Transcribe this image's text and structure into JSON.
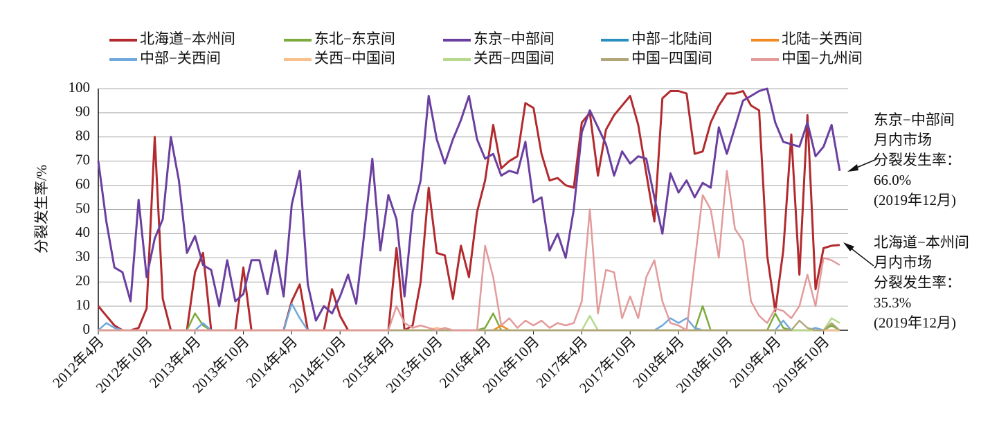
{
  "chart_data": {
    "type": "line",
    "y_label": "分裂发生率/%",
    "categories": [
      "2012年4月",
      null,
      null,
      null,
      null,
      null,
      "2012年10月",
      null,
      null,
      null,
      null,
      null,
      "2013年4月",
      null,
      null,
      null,
      null,
      null,
      "2013年10月",
      null,
      null,
      null,
      null,
      null,
      "2014年4月",
      null,
      null,
      null,
      null,
      null,
      "2014年10月",
      null,
      null,
      null,
      null,
      null,
      "2015年4月",
      null,
      null,
      null,
      null,
      null,
      "2015年10月",
      null,
      null,
      null,
      null,
      null,
      "2016年4月",
      null,
      null,
      null,
      null,
      null,
      "2016年10月",
      null,
      null,
      null,
      null,
      null,
      "2017年4月",
      null,
      null,
      null,
      null,
      null,
      "2017年10月",
      null,
      null,
      null,
      null,
      null,
      "2018年4月",
      null,
      null,
      null,
      null,
      null,
      "2018年10月",
      null,
      null,
      null,
      null,
      null,
      "2019年4月",
      null,
      null,
      null,
      null,
      null,
      "2019年10月",
      null,
      null
    ],
    "series": [
      {
        "name": "北海道−本州间",
        "color": "#b22a2e",
        "values": [
          10,
          6,
          2,
          0,
          0,
          1,
          9,
          80,
          13,
          0,
          0,
          0,
          24,
          32,
          0,
          0,
          0,
          0,
          26,
          0,
          0,
          0,
          0,
          0,
          12,
          19,
          0,
          0,
          0,
          17,
          6,
          0,
          0,
          0,
          0,
          0,
          0,
          34,
          0,
          2,
          20,
          59,
          32,
          31,
          13,
          35,
          22,
          49,
          62,
          85,
          67,
          70,
          72,
          94,
          92,
          73,
          62,
          63,
          60,
          59,
          86,
          90,
          64,
          83,
          89,
          93,
          97,
          85,
          65,
          45,
          96,
          99,
          99,
          98,
          73,
          74,
          86,
          93,
          98,
          98,
          99,
          93,
          91,
          31,
          8,
          33,
          81,
          23,
          89,
          17,
          34,
          35,
          35.3
        ]
      },
      {
        "name": "东北−东京间",
        "color": "#7aab3c",
        "values": [
          0,
          0,
          0,
          0,
          0,
          0,
          0,
          0,
          0,
          0,
          0,
          0,
          7,
          2,
          0,
          0,
          0,
          0,
          0,
          0,
          0,
          0,
          0,
          0,
          0,
          0,
          0,
          0,
          0,
          0,
          0,
          0,
          0,
          0,
          0,
          0,
          0,
          0,
          0,
          0,
          0,
          0,
          0,
          0,
          0,
          0,
          0,
          0,
          1,
          7,
          0,
          0,
          0,
          0,
          0,
          0,
          0,
          0,
          0,
          0,
          0,
          0,
          0,
          0,
          0,
          0,
          0,
          0,
          0,
          0,
          0,
          0,
          0,
          0,
          0,
          10,
          0,
          0,
          0,
          0,
          0,
          0,
          0,
          0,
          7,
          1,
          0,
          0,
          0,
          0,
          0,
          2,
          0
        ]
      },
      {
        "name": "东京−中部间",
        "color": "#6a3fa0",
        "values": [
          70,
          45,
          26,
          24,
          12,
          54,
          22,
          38,
          46,
          80,
          62,
          32,
          39,
          27,
          25,
          10,
          29,
          12,
          15,
          29,
          29,
          15,
          33,
          14,
          52,
          66,
          19,
          4,
          10,
          7,
          14,
          23,
          11,
          40,
          71,
          33,
          56,
          46,
          14,
          49,
          62,
          97,
          79,
          69,
          79,
          87,
          97,
          79,
          71,
          73,
          64,
          66,
          65,
          78,
          53,
          55,
          33,
          40,
          30,
          50,
          82,
          91,
          84,
          77,
          64,
          74,
          69,
          72,
          71,
          55,
          40,
          65,
          57,
          62,
          55,
          61,
          59,
          84,
          73,
          84,
          95,
          97,
          99,
          100,
          86,
          78,
          77,
          76,
          86,
          72,
          76,
          85,
          66
        ]
      },
      {
        "name": "中部−北陆间",
        "color": "#2a8fbf",
        "values": [
          0,
          0,
          0,
          0,
          0,
          0,
          0,
          0,
          0,
          0,
          0,
          0,
          0,
          0,
          0,
          0,
          0,
          0,
          0,
          0,
          0,
          0,
          0,
          0,
          0,
          0,
          0,
          0,
          0,
          0,
          0,
          0,
          0,
          0,
          0,
          0,
          0,
          0,
          0,
          0,
          0,
          0,
          0,
          0,
          0,
          0,
          0,
          0,
          0,
          0,
          0,
          0,
          0,
          0,
          0,
          0,
          0,
          0,
          0,
          0,
          0,
          0,
          0,
          0,
          0,
          0,
          0,
          0,
          0,
          0,
          0,
          0,
          0,
          0,
          0,
          0,
          0,
          0,
          0,
          0,
          0,
          0,
          0,
          0,
          0,
          0,
          0,
          0,
          0,
          0,
          0,
          0,
          0
        ]
      },
      {
        "name": "北陆−关西间",
        "color": "#f08a24",
        "values": [
          0,
          0,
          0,
          0,
          0,
          0,
          0,
          0,
          0,
          0,
          0,
          0,
          0,
          0,
          0,
          0,
          0,
          0,
          0,
          0,
          0,
          0,
          0,
          0,
          0,
          0,
          0,
          0,
          0,
          0,
          0,
          0,
          0,
          0,
          0,
          0,
          0,
          0,
          0,
          0,
          0,
          0,
          1,
          0,
          0,
          0,
          0,
          0,
          0,
          0,
          2,
          0,
          0,
          0,
          0,
          0,
          0,
          0,
          0,
          0,
          0,
          0,
          0,
          0,
          0,
          0,
          0,
          0,
          0,
          0,
          0,
          0,
          0,
          0,
          0,
          0,
          0,
          0,
          0,
          0,
          0,
          0,
          0,
          0,
          0,
          0,
          0,
          0,
          0,
          0,
          0,
          0,
          0
        ]
      },
      {
        "name": "中部−关西间",
        "color": "#6fa8dc",
        "values": [
          0,
          3,
          1,
          0,
          0,
          0,
          0,
          0,
          0,
          0,
          0,
          0,
          0,
          3,
          0,
          0,
          0,
          0,
          0,
          0,
          0,
          0,
          0,
          0,
          11,
          5,
          0,
          0,
          0,
          0,
          0,
          0,
          0,
          0,
          0,
          0,
          0,
          0,
          0,
          0,
          0,
          0,
          0,
          0,
          0,
          0,
          0,
          0,
          0,
          0,
          0,
          0,
          0,
          0,
          0,
          0,
          0,
          0,
          0,
          0,
          0,
          0,
          0,
          0,
          0,
          0,
          0,
          0,
          0,
          0,
          2,
          5,
          3,
          5,
          1,
          0,
          0,
          0,
          0,
          0,
          0,
          0,
          0,
          0,
          0,
          4,
          0,
          0,
          0,
          1,
          0,
          0,
          0
        ]
      },
      {
        "name": "关西−中国间",
        "color": "#f9c08c",
        "values": [
          0,
          0,
          0,
          0,
          0,
          0,
          0,
          0,
          0,
          0,
          0,
          0,
          0,
          0,
          0,
          0,
          0,
          0,
          0,
          0,
          0,
          0,
          0,
          0,
          0,
          0,
          0,
          0,
          0,
          0,
          0,
          0,
          0,
          0,
          0,
          0,
          0,
          0,
          0,
          0,
          0,
          0,
          1,
          0,
          0,
          0,
          0,
          0,
          0,
          0,
          0,
          0,
          0,
          0,
          0,
          0,
          0,
          0,
          0,
          0,
          0,
          0,
          0,
          0,
          0,
          0,
          0,
          0,
          0,
          0,
          0,
          0,
          0,
          0,
          0,
          0,
          0,
          0,
          0,
          0,
          0,
          0,
          0,
          0,
          0,
          0,
          0,
          0,
          0,
          0,
          0,
          0,
          0
        ]
      },
      {
        "name": "关西−四国间",
        "color": "#b6d98c",
        "values": [
          0,
          0,
          0,
          0,
          0,
          0,
          0,
          0,
          0,
          0,
          0,
          0,
          0,
          0,
          0,
          0,
          0,
          0,
          0,
          0,
          0,
          0,
          0,
          0,
          0,
          0,
          0,
          0,
          0,
          0,
          0,
          0,
          0,
          0,
          0,
          0,
          0,
          0,
          0,
          0,
          0,
          0,
          0,
          0,
          0,
          0,
          0,
          0,
          0,
          0,
          0,
          0,
          0,
          0,
          0,
          0,
          0,
          0,
          0,
          0,
          0,
          6,
          0,
          0,
          0,
          0,
          0,
          0,
          0,
          0,
          0,
          0,
          0,
          0,
          0,
          0,
          0,
          0,
          0,
          0,
          0,
          0,
          0,
          0,
          0,
          0,
          0,
          0,
          0,
          0,
          0,
          5,
          3
        ]
      },
      {
        "name": "中国−四国间",
        "color": "#b0a67a",
        "values": [
          0,
          0,
          0,
          0,
          0,
          0,
          0,
          0,
          0,
          0,
          0,
          0,
          0,
          0,
          0,
          0,
          0,
          0,
          0,
          0,
          0,
          0,
          0,
          0,
          0,
          0,
          0,
          0,
          0,
          0,
          0,
          0,
          0,
          0,
          0,
          0,
          0,
          0,
          0,
          0,
          0,
          0,
          0,
          0,
          0,
          0,
          0,
          0,
          0,
          0,
          0,
          0,
          0,
          0,
          0,
          0,
          0,
          0,
          0,
          0,
          0,
          0,
          0,
          0,
          0,
          0,
          0,
          0,
          0,
          0,
          0,
          0,
          0,
          0,
          0,
          0,
          0,
          0,
          0,
          0,
          0,
          0,
          0,
          0,
          0,
          0,
          0,
          4,
          1,
          0,
          0,
          3,
          0
        ]
      },
      {
        "name": "中国−九州间",
        "color": "#e39a9a",
        "values": [
          0,
          0,
          0,
          0,
          0,
          0,
          0,
          0,
          0,
          0,
          0,
          0,
          0,
          0,
          0,
          0,
          0,
          0,
          0,
          0,
          0,
          0,
          0,
          0,
          0,
          0,
          0,
          0,
          0,
          0,
          0,
          0,
          0,
          0,
          0,
          0,
          0,
          10,
          3,
          1,
          2,
          1,
          0,
          1,
          0,
          0,
          0,
          0,
          35,
          22,
          2,
          5,
          1,
          4,
          2,
          4,
          1,
          3,
          2,
          3,
          12,
          50,
          7,
          25,
          24,
          5,
          14,
          5,
          22,
          29,
          12,
          3,
          2,
          0,
          28,
          56,
          50,
          30,
          66,
          42,
          37,
          12,
          6,
          3,
          9,
          8,
          5,
          10,
          23,
          10,
          30,
          29,
          27
        ]
      }
    ],
    "ylim": [
      0,
      100
    ],
    "yticks": [
      0,
      10,
      20,
      30,
      40,
      50,
      60,
      70,
      80,
      90,
      100
    ],
    "grid": true,
    "annotations": [
      {
        "lines": [
          "东京−中部间",
          "月内市场",
          "分裂发生率：",
          "66.0%",
          "(2019年12月)"
        ]
      },
      {
        "lines": [
          "北海道−本州间",
          "月内市场",
          "分裂发生率：",
          "35.3%",
          "(2019年12月)"
        ]
      }
    ]
  }
}
